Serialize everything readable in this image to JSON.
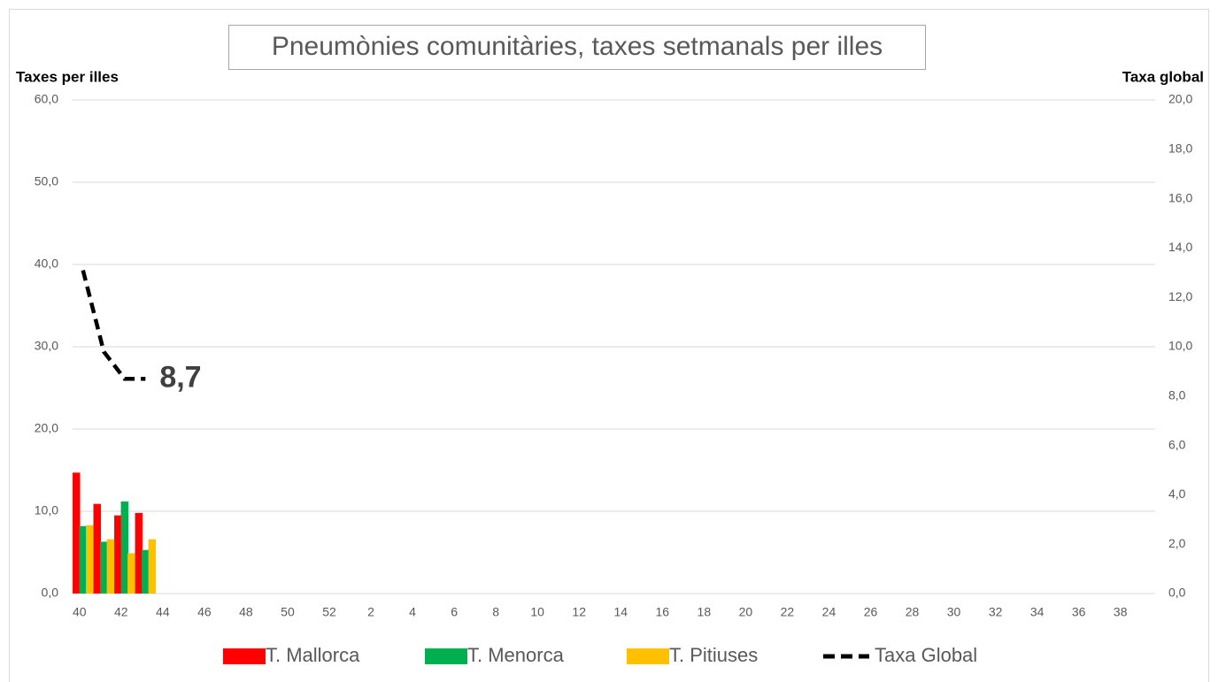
{
  "chart_data": {
    "type": "bar",
    "title": "Pneumònies comunitàries, taxes setmanals per illes",
    "y_label": "Taxes per illes",
    "y2_label": "Taxa global",
    "categories": [
      "40",
      null,
      "42",
      null,
      "44",
      null,
      "46",
      null,
      "48",
      null,
      "50",
      null,
      "52",
      null,
      "2",
      null,
      "4",
      null,
      "6",
      null,
      "8",
      null,
      "10",
      null,
      "12",
      null,
      "14",
      null,
      "16",
      null,
      "18",
      null,
      "20",
      null,
      "22",
      null,
      "24",
      null,
      "26",
      null,
      "28",
      null,
      "30",
      null,
      "32",
      null,
      "34",
      null,
      "36",
      null,
      "38",
      null
    ],
    "series": [
      {
        "name": "T. Mallorca",
        "color": "#ff0000",
        "values": [
          14.7,
          10.9,
          9.5,
          9.8,
          null,
          null,
          null,
          null,
          null,
          null,
          null,
          null,
          null,
          null,
          null,
          null,
          null,
          null,
          null,
          null,
          null,
          null,
          null,
          null,
          null,
          null,
          null,
          null,
          null,
          null,
          null,
          null,
          null,
          null,
          null,
          null,
          null,
          null,
          null,
          null,
          null,
          null,
          null,
          null,
          null,
          null,
          null,
          null,
          null,
          null,
          null,
          null
        ]
      },
      {
        "name": "T. Menorca",
        "color": "#00b050",
        "values": [
          8.2,
          6.3,
          11.2,
          5.3,
          null,
          null,
          null,
          null,
          null,
          null,
          null,
          null,
          null,
          null,
          null,
          null,
          null,
          null,
          null,
          null,
          null,
          null,
          null,
          null,
          null,
          null,
          null,
          null,
          null,
          null,
          null,
          null,
          null,
          null,
          null,
          null,
          null,
          null,
          null,
          null,
          null,
          null,
          null,
          null,
          null,
          null,
          null,
          null,
          null,
          null,
          null,
          null
        ]
      },
      {
        "name": "T. Pitiuses",
        "color": "#ffc000",
        "values": [
          8.3,
          6.6,
          4.9,
          6.6,
          null,
          null,
          null,
          null,
          null,
          null,
          null,
          null,
          null,
          null,
          null,
          null,
          null,
          null,
          null,
          null,
          null,
          null,
          null,
          null,
          null,
          null,
          null,
          null,
          null,
          null,
          null,
          null,
          null,
          null,
          null,
          null,
          null,
          null,
          null,
          null,
          null,
          null,
          null,
          null,
          null,
          null,
          null,
          null,
          null,
          null,
          null,
          null
        ]
      },
      {
        "name": "Taxa Global",
        "color": "#000000",
        "type": "line",
        "axis": "y2",
        "dashed": true,
        "values": [
          13.1,
          9.8,
          8.7,
          8.7,
          null,
          null,
          null,
          null,
          null,
          null,
          null,
          null,
          null,
          null,
          null,
          null,
          null,
          null,
          null,
          null,
          null,
          null,
          null,
          null,
          null,
          null,
          null,
          null,
          null,
          null,
          null,
          null,
          null,
          null,
          null,
          null,
          null,
          null,
          null,
          null,
          null,
          null,
          null,
          null,
          null,
          null,
          null,
          null,
          null,
          null,
          null,
          null
        ],
        "value_labels": [
          null,
          null,
          null,
          "8,7",
          null,
          null,
          null,
          null,
          null,
          null,
          null,
          null,
          null,
          null,
          null,
          null,
          null,
          null,
          null,
          null,
          null,
          null,
          null,
          null,
          null,
          null,
          null,
          null,
          null,
          null,
          null,
          null,
          null,
          null,
          null,
          null,
          null,
          null,
          null,
          null,
          null,
          null,
          null,
          null,
          null,
          null,
          null,
          null,
          null,
          null,
          null,
          null
        ]
      }
    ],
    "ylim": [
      0,
      60
    ],
    "yticks": [
      {
        "value": 0,
        "label": "0,0"
      },
      {
        "value": 10,
        "label": "10,0"
      },
      {
        "value": 20,
        "label": "20,0"
      },
      {
        "value": 30,
        "label": "30,0"
      },
      {
        "value": 40,
        "label": "40,0"
      },
      {
        "value": 50,
        "label": "50,0"
      },
      {
        "value": 60,
        "label": "60,0"
      }
    ],
    "y2lim": [
      0,
      20
    ],
    "y2ticks": [
      {
        "value": 0,
        "label": "0,0"
      },
      {
        "value": 2,
        "label": "2,0"
      },
      {
        "value": 4,
        "label": "4,0"
      },
      {
        "value": 6,
        "label": "6,0"
      },
      {
        "value": 8,
        "label": "8,0"
      },
      {
        "value": 10,
        "label": "10,0"
      },
      {
        "value": 12,
        "label": "12,0"
      },
      {
        "value": 14,
        "label": "14,0"
      },
      {
        "value": 16,
        "label": "16,0"
      },
      {
        "value": 18,
        "label": "18,0"
      },
      {
        "value": 20,
        "label": "20,0"
      }
    ],
    "grid": true,
    "legend": "bottom"
  }
}
